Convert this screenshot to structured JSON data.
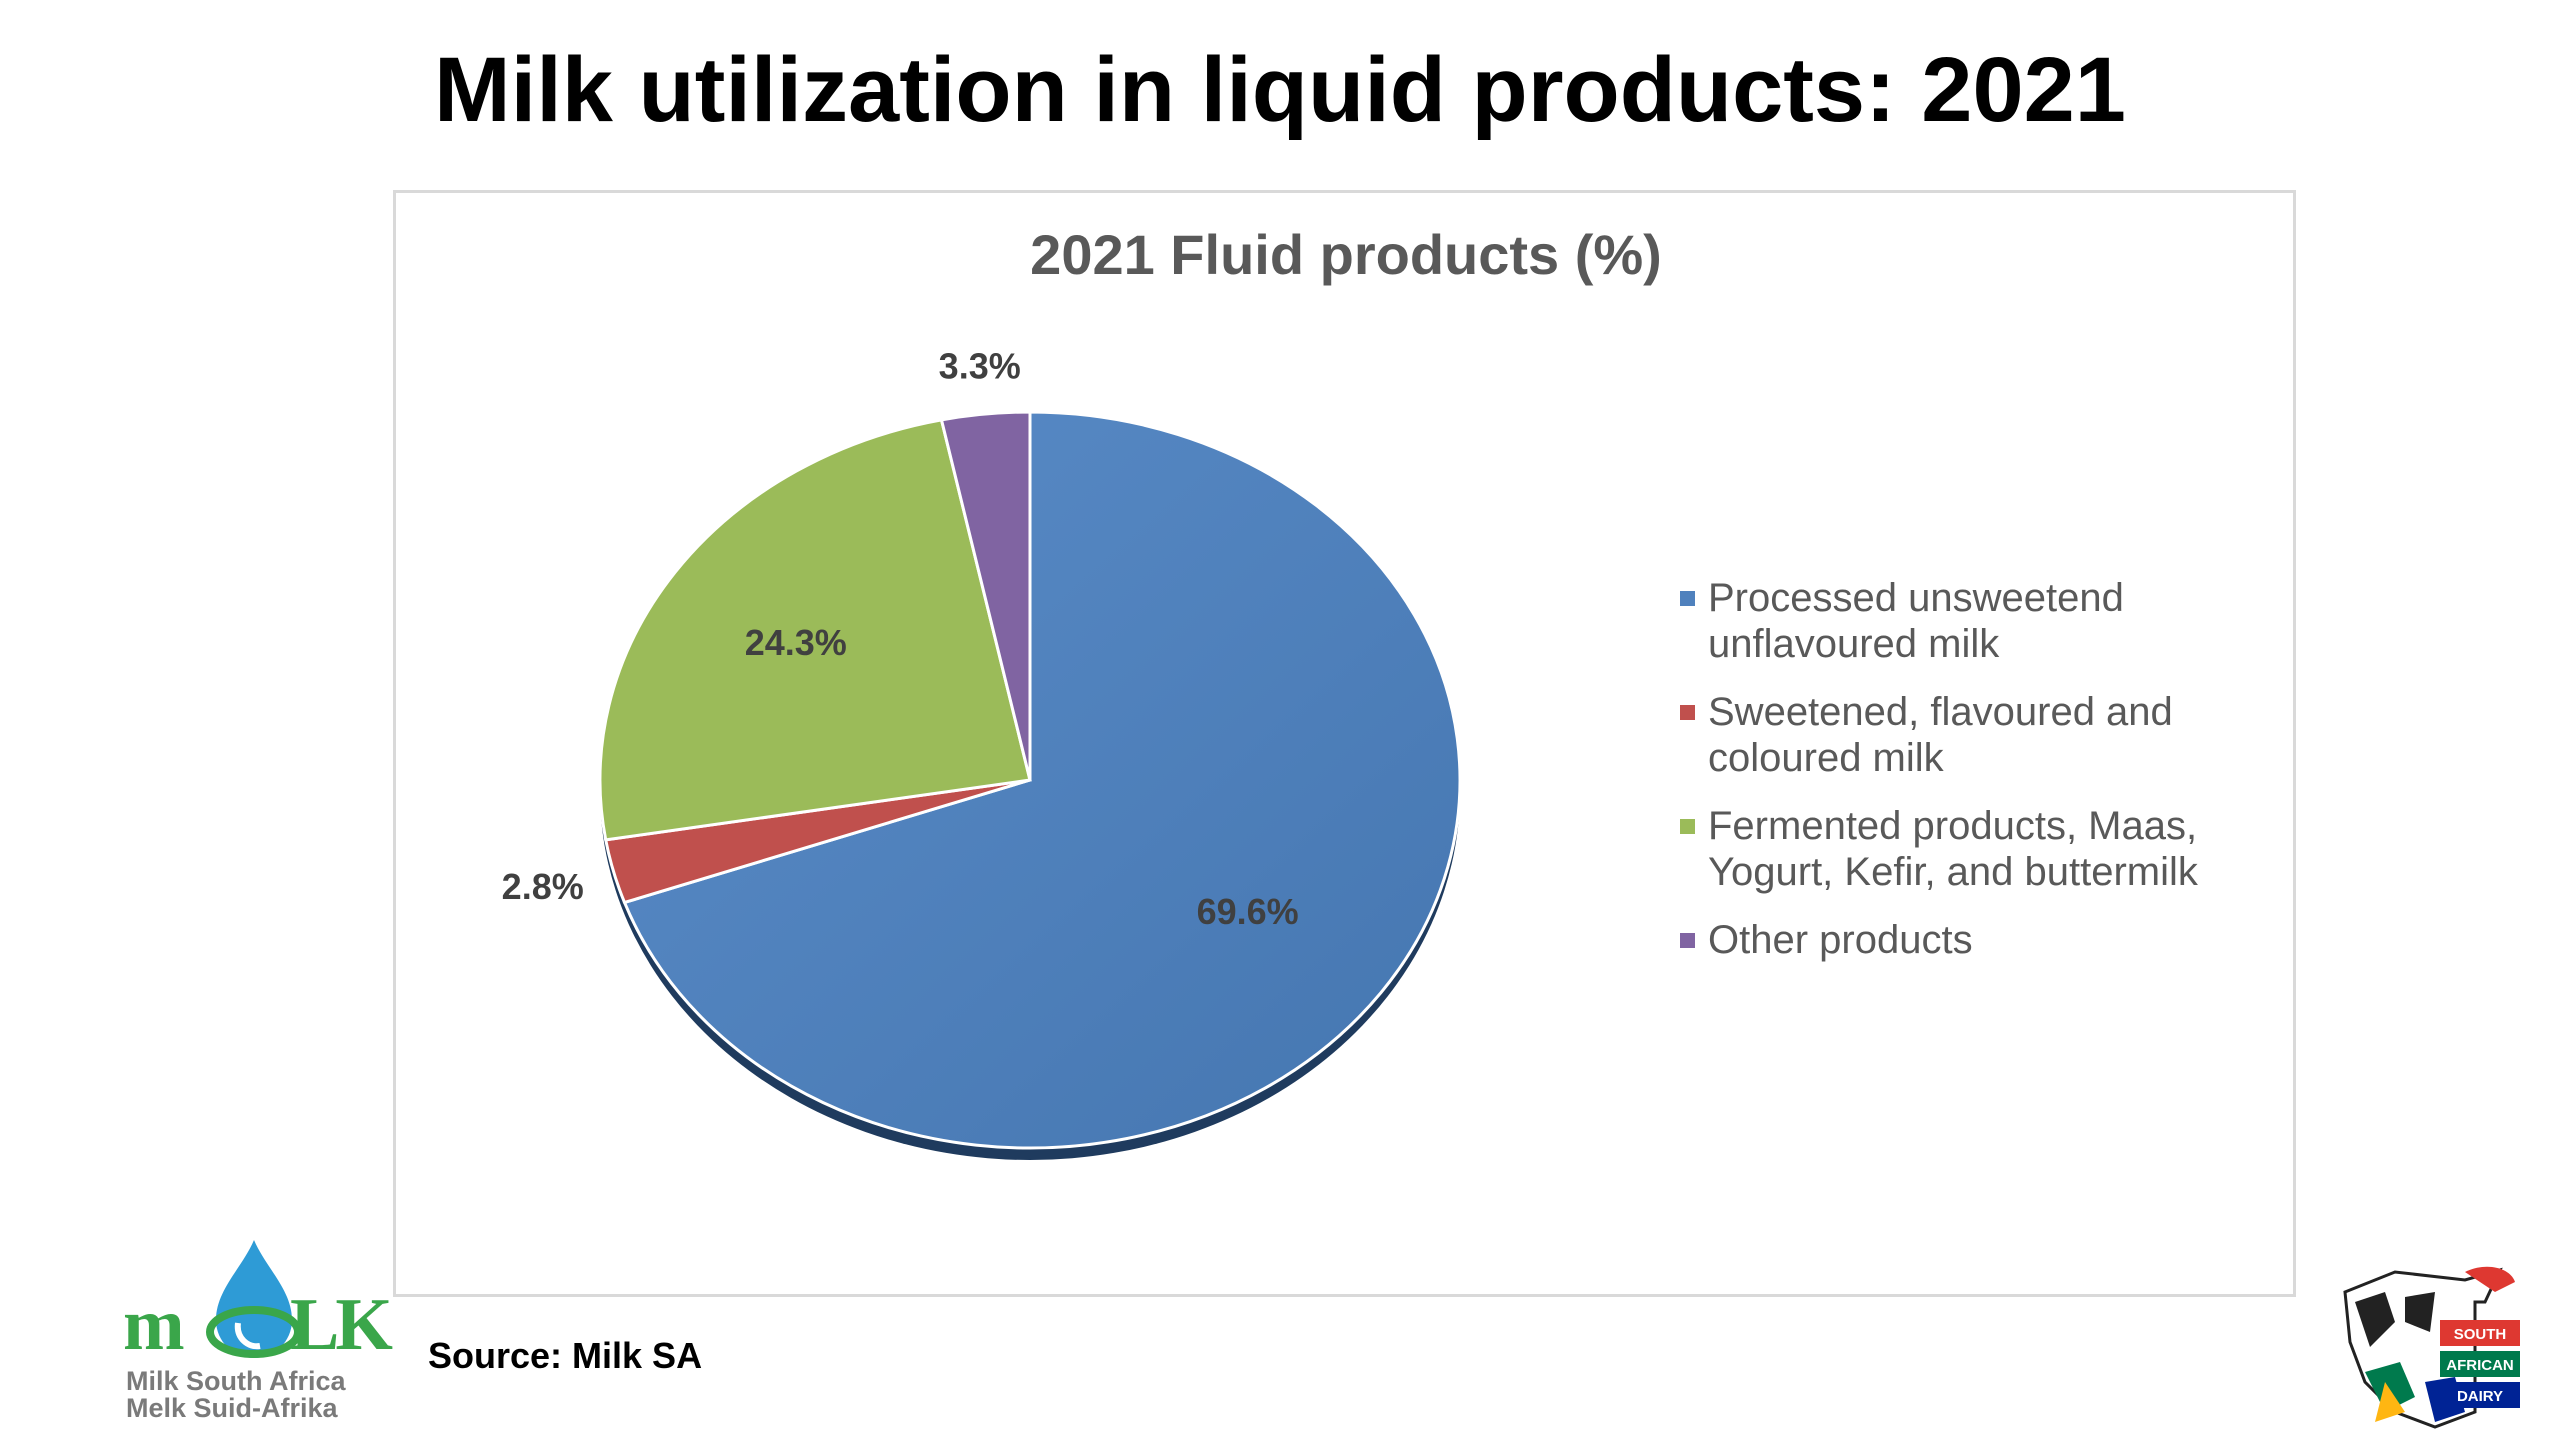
{
  "slide": {
    "title": "Milk utilization in liquid products: 2021",
    "source": "Source: Milk SA"
  },
  "logos": {
    "milk_sa": {
      "wordmark_left": "m",
      "wordmark_right": "LK",
      "line1": "Milk South Africa",
      "line2": "Melk Suid-Afrika"
    },
    "sa_dairy": {
      "line1": "SOUTH",
      "line2": "AFRICAN",
      "line3": "DAIRY"
    }
  },
  "chart_data": {
    "type": "pie",
    "title": "2021 Fluid products (%)",
    "legend_position": "right",
    "categories": [
      "Processed unsweetend unflavoured milk",
      "Sweetened, flavoured and coloured milk",
      "Fermented products, Maas, Yogurt, Kefir, and buttermilk",
      "Other products"
    ],
    "values": [
      69.6,
      2.8,
      24.3,
      3.3
    ],
    "labels": [
      "69.6%",
      "2.8%",
      "24.3%",
      "3.3%"
    ],
    "colors": [
      "#4f81bd",
      "#c0504d",
      "#9bbb59",
      "#8064a2"
    ],
    "legend_lines": [
      [
        "Processed unsweetend",
        "unflavoured milk"
      ],
      [
        "Sweetened, flavoured and",
        "coloured milk"
      ],
      [
        "Fermented products, Maas,",
        "Yogurt, Kefir, and buttermilk"
      ],
      [
        "Other products"
      ]
    ]
  }
}
